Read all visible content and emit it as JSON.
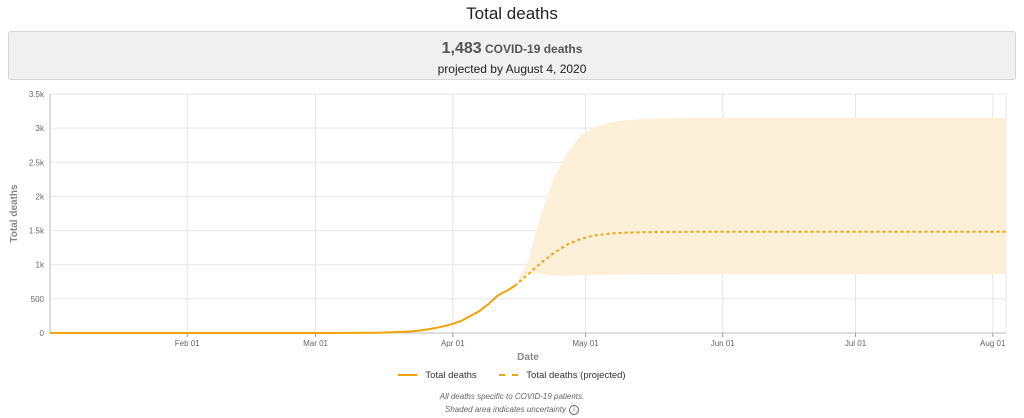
{
  "page": {
    "title": "Total deaths"
  },
  "summary": {
    "value": "1,483",
    "unit": "COVID-19 deaths",
    "subtitle": "projected by August 4, 2020"
  },
  "chart_data": {
    "type": "line",
    "xlabel": "Date",
    "ylabel": "Total deaths",
    "x_range": [
      "2020-01-01",
      "2020-08-04"
    ],
    "ylim": [
      0,
      3500
    ],
    "yticks": [
      0,
      500,
      1000,
      1500,
      2000,
      2500,
      3000,
      3500
    ],
    "ytick_labels": [
      "0",
      "500",
      "1k",
      "1.5k",
      "2k",
      "2.5k",
      "3k",
      "3.5k"
    ],
    "xticks": [
      "2020-02-01",
      "2020-03-01",
      "2020-04-01",
      "2020-05-01",
      "2020-06-01",
      "2020-07-01",
      "2020-08-01"
    ],
    "xtick_labels": [
      "Feb 01",
      "Mar 01",
      "Apr 01",
      "May 01",
      "Jun 01",
      "Jul 01",
      "Aug 01"
    ],
    "grid": true,
    "legend_position": "bottom-center",
    "series": [
      {
        "name": "Total deaths",
        "style": "solid",
        "color": "#f0a30a",
        "points": [
          [
            "2020-01-01",
            0
          ],
          [
            "2020-03-01",
            0
          ],
          [
            "2020-03-10",
            2
          ],
          [
            "2020-03-15",
            5
          ],
          [
            "2020-03-18",
            10
          ],
          [
            "2020-03-20",
            15
          ],
          [
            "2020-03-23",
            25
          ],
          [
            "2020-03-25",
            40
          ],
          [
            "2020-03-27",
            60
          ],
          [
            "2020-03-29",
            85
          ],
          [
            "2020-03-31",
            115
          ],
          [
            "2020-04-01",
            135
          ],
          [
            "2020-04-03",
            180
          ],
          [
            "2020-04-05",
            250
          ],
          [
            "2020-04-07",
            320
          ],
          [
            "2020-04-08",
            370
          ],
          [
            "2020-04-09",
            420
          ],
          [
            "2020-04-10",
            480
          ],
          [
            "2020-04-11",
            540
          ],
          [
            "2020-04-12",
            580
          ],
          [
            "2020-04-13",
            610
          ],
          [
            "2020-04-14",
            650
          ],
          [
            "2020-04-15",
            690
          ]
        ]
      },
      {
        "name": "Total deaths (projected)",
        "style": "dashed",
        "color": "#f0a30a",
        "points": [
          [
            "2020-04-15",
            690
          ],
          [
            "2020-04-18",
            860
          ],
          [
            "2020-04-21",
            1030
          ],
          [
            "2020-04-24",
            1180
          ],
          [
            "2020-04-27",
            1300
          ],
          [
            "2020-04-30",
            1380
          ],
          [
            "2020-05-03",
            1430
          ],
          [
            "2020-05-08",
            1465
          ],
          [
            "2020-05-15",
            1478
          ],
          [
            "2020-05-25",
            1482
          ],
          [
            "2020-06-15",
            1483
          ],
          [
            "2020-08-04",
            1483
          ]
        ]
      }
    ],
    "uncertainty_band": {
      "color": "#fdf0d8",
      "points": [
        [
          "2020-04-15",
          690,
          690
        ],
        [
          "2020-04-18",
          880,
          1050
        ],
        [
          "2020-04-21",
          860,
          1750
        ],
        [
          "2020-04-24",
          840,
          2300
        ],
        [
          "2020-04-27",
          840,
          2650
        ],
        [
          "2020-04-30",
          845,
          2900
        ],
        [
          "2020-05-03",
          850,
          3020
        ],
        [
          "2020-05-08",
          855,
          3100
        ],
        [
          "2020-05-15",
          858,
          3140
        ],
        [
          "2020-05-25",
          860,
          3150
        ],
        [
          "2020-08-04",
          860,
          3150
        ]
      ]
    }
  },
  "legend": {
    "actual_label": "Total deaths",
    "projected_label": "Total deaths (projected)"
  },
  "footnotes": {
    "line1": "All deaths specific to COVID-19 patients.",
    "line2": "Shaded area indicates uncertainty",
    "info_icon_glyph": "i"
  }
}
